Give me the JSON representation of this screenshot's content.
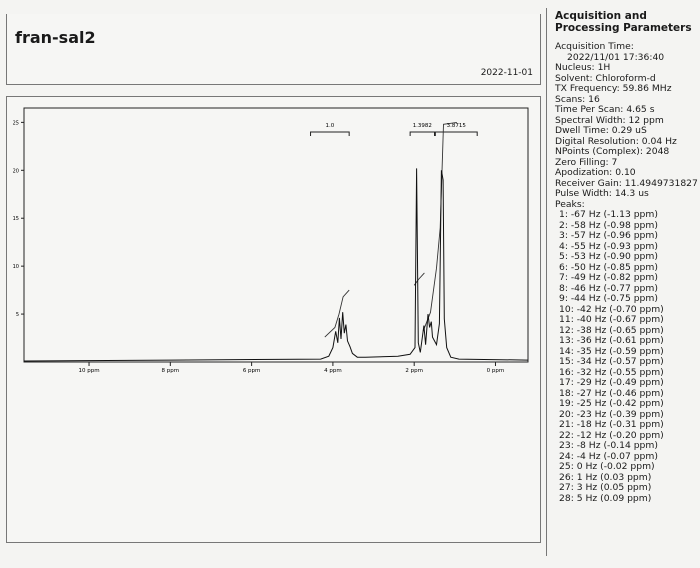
{
  "document": {
    "title": "fran-sal2",
    "date": "2022-11-01"
  },
  "params": {
    "heading_line1": "Acquisition and",
    "heading_line2": "Processing Parameters",
    "acq_time_label": "Acquisition Time:",
    "acq_time_value": "2022/11/01 17:36:40",
    "rows": [
      "Nucleus: 1H",
      "Solvent: Chloroform-d",
      "TX Frequency: 59.86 MHz",
      "Scans: 16",
      "Time Per Scan: 4.65 s",
      "Spectral Width: 12 ppm",
      "Dwell Time: 0.29 uS",
      "Digital Resolution: 0.04 Hz",
      "NPoints (Complex): 2048",
      "Zero Filling: 7",
      "Apodization: 0.10",
      "Receiver Gain: 11.4949731827",
      "Pulse Width: 14.3 us",
      "Peaks:"
    ],
    "peaks": [
      "1: -67 Hz (-1.13 ppm)",
      "2: -58 Hz (-0.98 ppm)",
      "3: -57 Hz (-0.96 ppm)",
      "4: -55 Hz (-0.93 ppm)",
      "5: -53 Hz (-0.90 ppm)",
      "6: -50 Hz (-0.85 ppm)",
      "7: -49 Hz (-0.82 ppm)",
      "8: -46 Hz (-0.77 ppm)",
      "9: -44 Hz (-0.75 ppm)",
      "10: -42 Hz (-0.70 ppm)",
      "11: -40 Hz (-0.67 ppm)",
      "12: -38 Hz (-0.65 ppm)",
      "13: -36 Hz (-0.61 ppm)",
      "14: -35 Hz (-0.59 ppm)",
      "15: -34 Hz (-0.57 ppm)",
      "16: -32 Hz (-0.55 ppm)",
      "17: -29 Hz (-0.49 ppm)",
      "18: -27 Hz (-0.46 ppm)",
      "19: -25 Hz (-0.42 ppm)",
      "20: -23 Hz (-0.39 ppm)",
      "21: -18 Hz (-0.31 ppm)",
      "22: -12 Hz (-0.20 ppm)",
      "23: -8 Hz (-0.14 ppm)",
      "24: -4 Hz (-0.07 ppm)",
      "25: 0 Hz (-0.02 ppm)",
      "26: 1 Hz (0.03 ppm)",
      "27: 3 Hz (0.05 ppm)",
      "28: 5 Hz (0.09 ppm)"
    ]
  },
  "chart_data": {
    "type": "line",
    "x_axis": {
      "range_ppm": [
        11.6,
        -0.8
      ],
      "reversed": true,
      "ticks": [
        10,
        8,
        6,
        4,
        2,
        0
      ],
      "tick_labels": [
        "10 ppm",
        "8 ppm",
        "6 ppm",
        "4 ppm",
        "2 ppm",
        "0 ppm"
      ]
    },
    "y_axis": {
      "range": [
        0,
        26.5
      ],
      "ticks": [
        5,
        10,
        15,
        20,
        25
      ],
      "tick_labels": [
        "5",
        "10",
        "15",
        "20",
        "25"
      ]
    },
    "spectrum": [
      [
        11.6,
        0.1
      ],
      [
        8.0,
        0.2
      ],
      [
        4.3,
        0.3
      ],
      [
        4.1,
        0.6
      ],
      [
        4.0,
        1.5
      ],
      [
        3.93,
        3.2
      ],
      [
        3.88,
        2.0
      ],
      [
        3.84,
        4.6
      ],
      [
        3.8,
        2.4
      ],
      [
        3.76,
        5.2
      ],
      [
        3.72,
        3.0
      ],
      [
        3.68,
        3.9
      ],
      [
        3.64,
        2.2
      ],
      [
        3.58,
        1.6
      ],
      [
        3.52,
        0.9
      ],
      [
        3.4,
        0.5
      ],
      [
        3.2,
        0.5
      ],
      [
        2.4,
        0.6
      ],
      [
        2.1,
        0.8
      ],
      [
        1.98,
        1.5
      ],
      [
        1.94,
        20.2
      ],
      [
        1.9,
        2.0
      ],
      [
        1.85,
        1.0
      ],
      [
        1.76,
        3.8
      ],
      [
        1.72,
        1.8
      ],
      [
        1.66,
        5.0
      ],
      [
        1.62,
        3.6
      ],
      [
        1.58,
        4.2
      ],
      [
        1.55,
        2.6
      ],
      [
        1.5,
        2.2
      ],
      [
        1.45,
        1.8
      ],
      [
        1.38,
        4.0
      ],
      [
        1.33,
        20.0
      ],
      [
        1.29,
        19.0
      ],
      [
        1.26,
        4.5
      ],
      [
        1.2,
        1.5
      ],
      [
        1.1,
        0.5
      ],
      [
        0.9,
        0.3
      ],
      [
        -0.8,
        0.2
      ]
    ],
    "integrals": [
      {
        "label": "1.0",
        "from": 3.6,
        "to": 4.55,
        "curve": [
          [
            4.2,
            2.6
          ],
          [
            3.95,
            3.6
          ],
          [
            3.85,
            5.0
          ],
          [
            3.75,
            6.8
          ],
          [
            3.6,
            7.5
          ]
        ]
      },
      {
        "label": "1.3982",
        "from": 1.5,
        "to": 2.1,
        "curve": [
          [
            2.0,
            8.0
          ],
          [
            1.9,
            8.6
          ],
          [
            1.75,
            9.3
          ]
        ]
      },
      {
        "label": "3.8715",
        "from": 0.45,
        "to": 1.48,
        "curve": [
          [
            1.78,
            3.2
          ],
          [
            1.6,
            5.2
          ],
          [
            1.45,
            9.8
          ],
          [
            1.36,
            14.0
          ],
          [
            1.28,
            24.8
          ],
          [
            1.1,
            24.9
          ],
          [
            0.95,
            25.0
          ]
        ]
      }
    ]
  }
}
